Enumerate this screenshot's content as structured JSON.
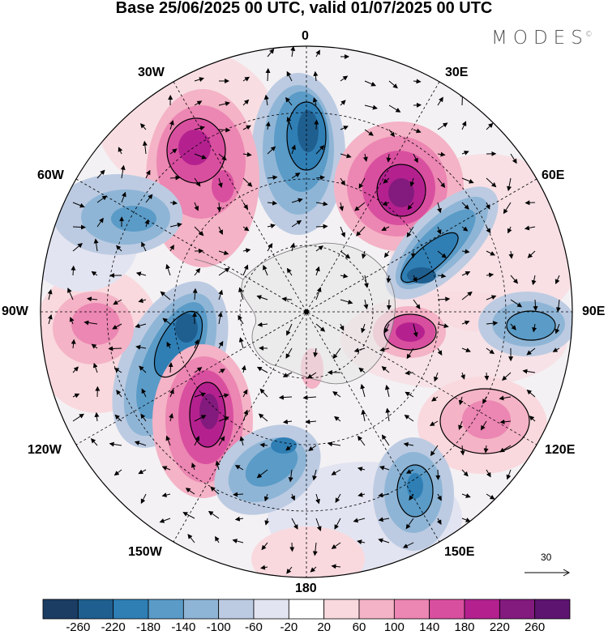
{
  "title": "Base 25/06/2025 00 UTC, valid 01/07/2025 00 UTC",
  "brand": {
    "name": "MODES",
    "mark": "©"
  },
  "longitude_labels": {
    "top": "0",
    "bottom": "180",
    "left": "90W",
    "right": "90E",
    "upper_left_1": "30W",
    "upper_left_2": "60W",
    "upper_right_1": "30E",
    "upper_right_2": "60E",
    "lower_left_1": "120W",
    "lower_left_2": "150W",
    "lower_right_1": "120E",
    "lower_right_2": "150E"
  },
  "reference_vector": {
    "value": "30"
  },
  "colorbar": {
    "ticks": [
      "-260",
      "-220",
      "-180",
      "-140",
      "-100",
      "-60",
      "-20",
      "20",
      "60",
      "100",
      "140",
      "180",
      "220",
      "260"
    ],
    "colors": [
      "#1b3d63",
      "#1f5f8f",
      "#2f7fb5",
      "#5a9bc7",
      "#8fb5d6",
      "#bccbe2",
      "#e3e4f1",
      "#ffffff",
      "#f9d9de",
      "#f4b3c6",
      "#ec86b2",
      "#d94f9f",
      "#b4218f",
      "#831a7d",
      "#5c1470"
    ]
  },
  "blobs": [
    {
      "label": "neg-0E",
      "color": "#1f5f8f",
      "outer": "#bccbe2"
    },
    {
      "label": "pos-30W",
      "color": "#b4218f",
      "outer": "#f4b3c6"
    },
    {
      "label": "neg-70W",
      "color": "#5a9bc7",
      "outer": "#bccbe2"
    },
    {
      "label": "pos-45E",
      "color": "#831a7d",
      "outer": "#f4b3c6"
    },
    {
      "label": "neg-65E",
      "color": "#1f5f8f",
      "outer": "#8fb5d6"
    },
    {
      "label": "neg-90E",
      "color": "#2f7fb5",
      "outer": "#bccbe2"
    },
    {
      "label": "pos-95E",
      "color": "#b4218f",
      "outer": "#f4b3c6"
    },
    {
      "label": "pos-120E",
      "color": "#d94f9f",
      "outer": "#f9d9de"
    },
    {
      "label": "neg-150E",
      "color": "#2f7fb5",
      "outer": "#bccbe2"
    },
    {
      "label": "neg-100W",
      "color": "#1f5f8f",
      "outer": "#8fb5d6"
    },
    {
      "label": "pos-135W",
      "color": "#831a7d",
      "outer": "#ec86b2"
    },
    {
      "label": "pos-95W",
      "color": "#ec86b2",
      "outer": "#f9d9de"
    },
    {
      "label": "neg-165W",
      "color": "#2f7fb5",
      "outer": "#bccbe2"
    },
    {
      "label": "pos-180",
      "color": "#f4b3c6",
      "outer": "#f9d9de"
    }
  ]
}
